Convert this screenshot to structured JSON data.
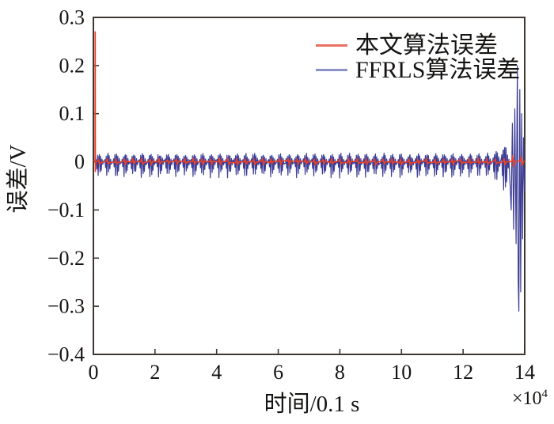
{
  "figure": {
    "background": "#ffffff"
  },
  "chart_data": {
    "type": "line",
    "title": "",
    "xlabel": "时间/0.1 s",
    "ylabel": "误差/V",
    "x_multiplier": {
      "base": "×10",
      "exp": "4"
    },
    "xlim": [
      0,
      14
    ],
    "ylim": [
      -0.4,
      0.3
    ],
    "x_tick_values": [
      0,
      2,
      4,
      6,
      8,
      10,
      12,
      14
    ],
    "x_tick_labels": [
      "0",
      "2",
      "4",
      "6",
      "8",
      "10",
      "12",
      "14"
    ],
    "y_tick_values": [
      0.3,
      0.2,
      0.1,
      0,
      -0.1,
      -0.2,
      -0.3,
      -0.4
    ],
    "y_tick_labels": [
      "0.3",
      "0.2",
      "0.1",
      "0",
      "−0.1",
      "−0.2",
      "−0.3",
      "−0.4"
    ],
    "grid": false,
    "legend_position": "top-right-inside",
    "legend_border": false,
    "axis_color": "#3e3733",
    "text_color": "#161412",
    "series": [
      {
        "name": "本文算法误差",
        "color": "#e8432a",
        "legend_color": "#ea7060",
        "shape": "initial spike at x≈0 then flat near zero for whole range",
        "initial_spike": {
          "x": 0.06,
          "y_top": 0.27,
          "y_bottom": -0.02
        },
        "steady_noise": 0.002,
        "burst_tick_amp": 0.007,
        "end_blip": {
          "x_start": 13.4,
          "x_end": 13.95,
          "amp": 0.012
        }
      },
      {
        "name": "FFRLS算法误差",
        "color": "#3d3d96",
        "legend_color": "#8a92c8",
        "shape": "periodic small bursts around zero, diverging near end of range",
        "burst_period": 0.28,
        "steady_amp_up": 0.016,
        "steady_amp_down": 0.028,
        "divergence_start": 12.6,
        "peak_up": 0.2,
        "peak_down": -0.31,
        "extreme_points": [
          [
            13.56,
            -0.1
          ],
          [
            13.6,
            0.08
          ],
          [
            13.64,
            -0.14
          ],
          [
            13.68,
            0.11
          ],
          [
            13.72,
            -0.17
          ],
          [
            13.76,
            0.2
          ],
          [
            13.79,
            -0.25
          ],
          [
            13.81,
            -0.31
          ],
          [
            13.84,
            0.15
          ],
          [
            13.87,
            -0.27
          ],
          [
            13.9,
            0.1
          ],
          [
            13.93,
            -0.16
          ],
          [
            13.96,
            0.05
          ],
          [
            13.99,
            -0.06
          ]
        ],
        "end_y": -0.015
      }
    ]
  }
}
